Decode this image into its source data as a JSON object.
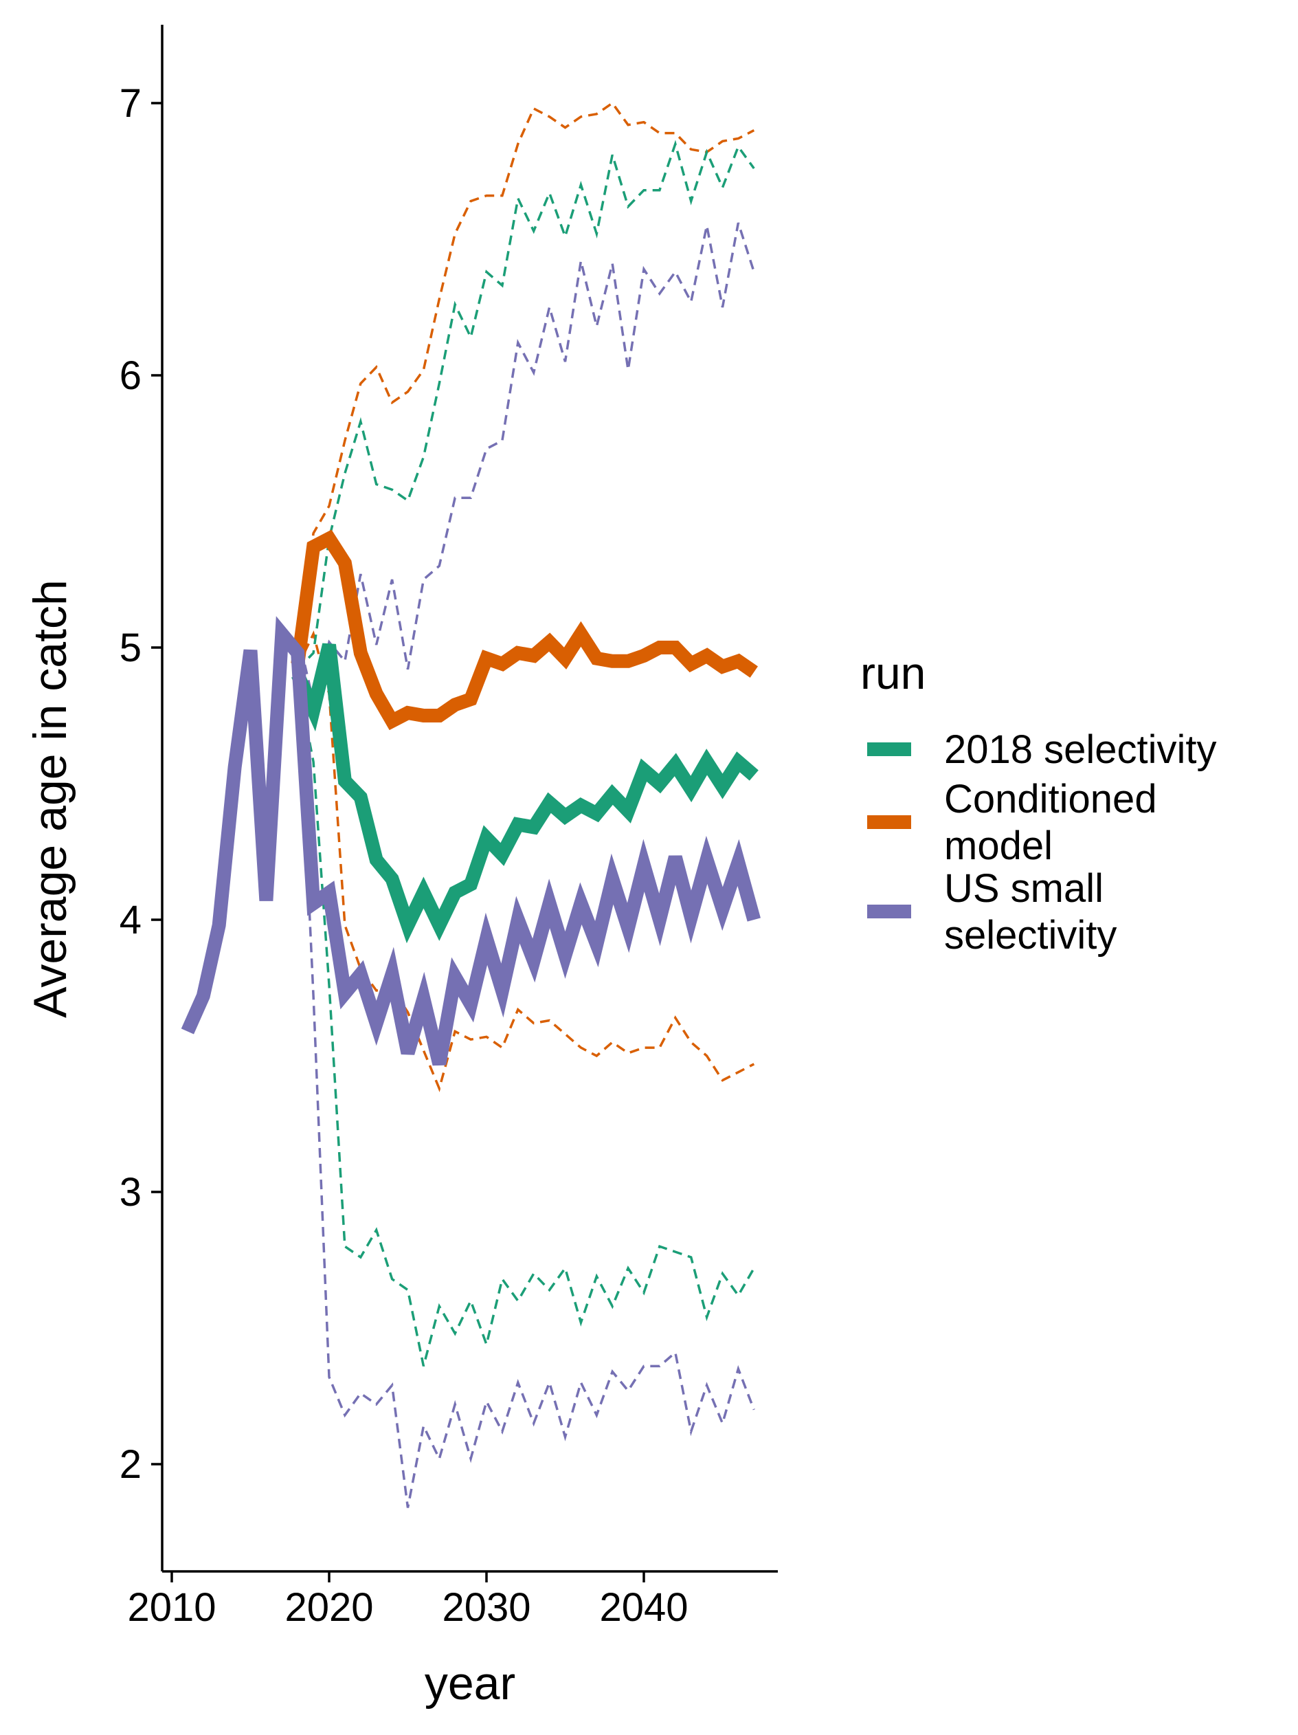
{
  "chart_data": {
    "type": "line",
    "xlabel": "year",
    "ylabel": "Average age in catch",
    "xlim": [
      2009.9,
      2048.2
    ],
    "ylim": [
      1.6,
      7.28
    ],
    "x_ticks": [
      "2010",
      "2020",
      "2030",
      "2040"
    ],
    "y_ticks": [
      "2",
      "3",
      "4",
      "5",
      "6",
      "7"
    ],
    "grid": false,
    "legend": {
      "title": "run",
      "position": "right",
      "entries": [
        {
          "key": "s2018",
          "lines": [
            "2018 selectivity"
          ],
          "color": "#1b9e77"
        },
        {
          "key": "cond",
          "lines": [
            "Conditioned",
            "model"
          ],
          "color": "#d95f02"
        },
        {
          "key": "ussmall",
          "lines": [
            "US small",
            "selectivity"
          ],
          "color": "#7570b3"
        }
      ]
    },
    "series": [
      {
        "name": "Conditioned model",
        "key": "cond",
        "color": "#d95f02",
        "x": [
          2018,
          2019,
          2020,
          2021,
          2022,
          2023,
          2024,
          2025,
          2026,
          2027,
          2028,
          2029,
          2030,
          2031,
          2032,
          2033,
          2034,
          2035,
          2036,
          2037,
          2038,
          2039,
          2040,
          2041,
          2042,
          2043,
          2044,
          2045,
          2046,
          2047
        ],
        "median": [
          4.94,
          5.37,
          5.4,
          5.31,
          4.98,
          4.83,
          4.73,
          4.76,
          4.75,
          4.75,
          4.79,
          4.81,
          4.96,
          4.94,
          4.98,
          4.97,
          5.02,
          4.96,
          5.05,
          4.96,
          4.95,
          4.95,
          4.97,
          5.0,
          5.0,
          4.94,
          4.97,
          4.93,
          4.95,
          4.91
        ],
        "upper": [
          4.95,
          5.42,
          5.52,
          5.76,
          5.97,
          6.03,
          5.9,
          5.94,
          6.02,
          6.28,
          6.52,
          6.64,
          6.66,
          6.66,
          6.85,
          6.98,
          6.95,
          6.91,
          6.95,
          6.96,
          7.0,
          6.92,
          6.93,
          6.89,
          6.89,
          6.83,
          6.82,
          6.86,
          6.87,
          6.9
        ],
        "lower": [
          4.93,
          5.05,
          4.83,
          3.98,
          3.82,
          3.74,
          3.75,
          3.66,
          3.52,
          3.38,
          3.59,
          3.56,
          3.57,
          3.53,
          3.67,
          3.62,
          3.63,
          3.58,
          3.53,
          3.5,
          3.55,
          3.51,
          3.53,
          3.53,
          3.64,
          3.55,
          3.5,
          3.41,
          3.44,
          3.47
        ]
      },
      {
        "name": "2018 selectivity",
        "key": "s2018",
        "color": "#1b9e77",
        "x": [
          2018,
          2019,
          2020,
          2021,
          2022,
          2023,
          2024,
          2025,
          2026,
          2027,
          2028,
          2029,
          2030,
          2031,
          2032,
          2033,
          2034,
          2035,
          2036,
          2037,
          2038,
          2039,
          2040,
          2041,
          2042,
          2043,
          2044,
          2045,
          2046,
          2047
        ],
        "median": [
          4.9,
          4.77,
          5.01,
          4.51,
          4.45,
          4.22,
          4.15,
          3.98,
          4.1,
          3.98,
          4.1,
          4.13,
          4.3,
          4.24,
          4.35,
          4.34,
          4.43,
          4.38,
          4.42,
          4.39,
          4.46,
          4.4,
          4.55,
          4.5,
          4.57,
          4.48,
          4.58,
          4.49,
          4.58,
          4.53
        ],
        "upper": [
          4.92,
          4.98,
          5.4,
          5.64,
          5.83,
          5.6,
          5.58,
          5.54,
          5.7,
          5.97,
          6.26,
          6.14,
          6.38,
          6.33,
          6.65,
          6.53,
          6.67,
          6.51,
          6.7,
          6.52,
          6.81,
          6.62,
          6.68,
          6.68,
          6.85,
          6.64,
          6.82,
          6.69,
          6.84,
          6.76
        ],
        "lower": [
          4.88,
          4.58,
          3.76,
          2.8,
          2.76,
          2.86,
          2.68,
          2.64,
          2.36,
          2.58,
          2.48,
          2.6,
          2.44,
          2.68,
          2.6,
          2.7,
          2.64,
          2.72,
          2.52,
          2.69,
          2.58,
          2.72,
          2.63,
          2.8,
          2.78,
          2.76,
          2.54,
          2.7,
          2.62,
          2.72
        ]
      },
      {
        "name": "US small selectivity",
        "key": "ussmall",
        "color": "#7570b3",
        "x": [
          2011,
          2012,
          2013,
          2014,
          2015,
          2016,
          2017,
          2018,
          2019,
          2020,
          2021,
          2022,
          2023,
          2024,
          2025,
          2026,
          2027,
          2028,
          2029,
          2030,
          2031,
          2032,
          2033,
          2034,
          2035,
          2036,
          2037,
          2038,
          2039,
          2040,
          2041,
          2042,
          2043,
          2044,
          2045,
          2046,
          2047
        ],
        "median": [
          3.59,
          3.72,
          3.98,
          4.56,
          4.99,
          4.07,
          5.05,
          4.98,
          4.06,
          4.1,
          3.73,
          3.8,
          3.62,
          3.8,
          3.51,
          3.71,
          3.47,
          3.79,
          3.69,
          3.93,
          3.74,
          4.0,
          3.85,
          4.06,
          3.87,
          4.06,
          3.91,
          4.15,
          3.97,
          4.2,
          4.0,
          4.23,
          4.01,
          4.22,
          4.04,
          4.21,
          4.0
        ],
        "upper": [
          null,
          null,
          null,
          null,
          null,
          null,
          null,
          5.05,
          4.8,
          5.02,
          4.95,
          5.27,
          5.01,
          5.25,
          4.92,
          5.25,
          5.3,
          5.55,
          5.55,
          5.73,
          5.76,
          6.12,
          6.01,
          6.25,
          6.05,
          6.42,
          6.18,
          6.41,
          6.02,
          6.39,
          6.3,
          6.38,
          6.27,
          6.55,
          6.25,
          6.56,
          6.38
        ],
        "lower": [
          null,
          null,
          null,
          null,
          null,
          null,
          null,
          4.96,
          3.72,
          2.32,
          2.18,
          2.26,
          2.22,
          2.29,
          1.84,
          2.14,
          2.02,
          2.22,
          2.02,
          2.23,
          2.12,
          2.3,
          2.15,
          2.3,
          2.1,
          2.3,
          2.18,
          2.34,
          2.27,
          2.36,
          2.36,
          2.41,
          2.12,
          2.29,
          2.15,
          2.35,
          2.2
        ]
      }
    ]
  }
}
